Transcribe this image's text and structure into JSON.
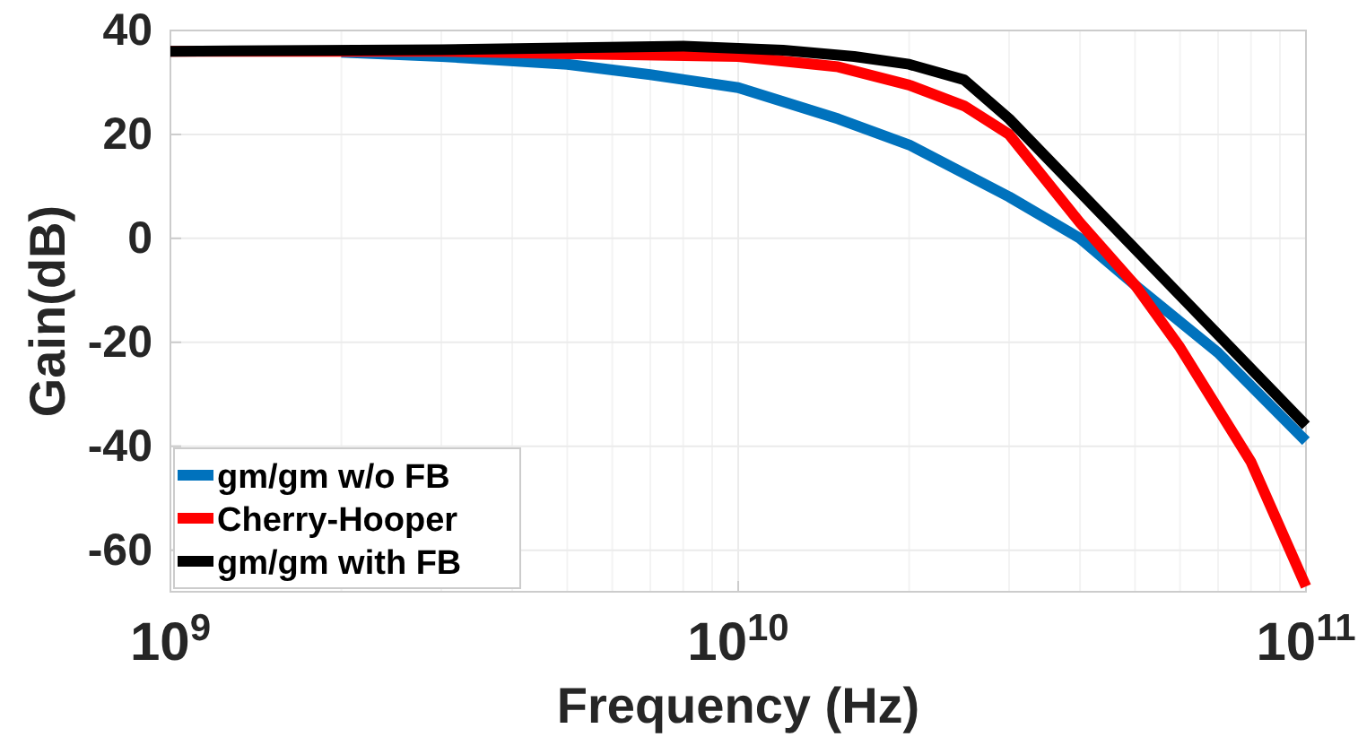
{
  "chart_data": {
    "type": "line",
    "xlabel": "Frequency (Hz)",
    "ylabel": "Gain(dB)",
    "log": "x",
    "xlim": [
      1000000000.0,
      100000000000.0
    ],
    "ylim": [
      -68,
      40
    ],
    "xticks": [
      {
        "value": 1000000000.0,
        "label": "10$^{9}$"
      },
      {
        "value": 10000000000.0,
        "label": "10$^{10}$"
      },
      {
        "value": 100000000000.0,
        "label": "10$^{11}$"
      }
    ],
    "yticks": [
      -60,
      -40,
      -20,
      0,
      20,
      40
    ],
    "grid": true,
    "legend": "bottom left",
    "line_style": "solid",
    "marker": "none",
    "series": [
      {
        "name": "gm/gm w/o FB",
        "color": "#0072bd",
        "x": [
          2000000000.0,
          3000000000.0,
          5000000000.0,
          7000000000.0,
          10000000000.0,
          15000000000.0,
          20000000000.0,
          30000000000.0,
          40000000000.0,
          50000000000.0,
          70000000000.0,
          100000000000.0
        ],
        "values": [
          35.8,
          35,
          33.5,
          31.5,
          29,
          23,
          18,
          8,
          0,
          -9,
          -22,
          -39
        ]
      },
      {
        "name": "Cherry-Hooper",
        "color": "#ff0000",
        "x": [
          1000000000.0,
          3000000000.0,
          5000000000.0,
          10000000000.0,
          15000000000.0,
          20000000000.0,
          25000000000.0,
          30000000000.0,
          40000000000.0,
          50000000000.0,
          60000000000.0,
          80000000000.0,
          100000000000.0
        ],
        "values": [
          36,
          36,
          35.5,
          35,
          33,
          29.5,
          25.5,
          20,
          3,
          -9,
          -21,
          -43,
          -67
        ]
      },
      {
        "name": "gm/gm with FB",
        "color": "#000000",
        "x": [
          1000000000.0,
          3000000000.0,
          8000000000.0,
          12000000000.0,
          16000000000.0,
          20000000000.0,
          25000000000.0,
          30000000000.0,
          100000000000.0
        ],
        "values": [
          36,
          36.3,
          37,
          36.2,
          35,
          33.5,
          30.5,
          23,
          -36
        ]
      }
    ]
  }
}
